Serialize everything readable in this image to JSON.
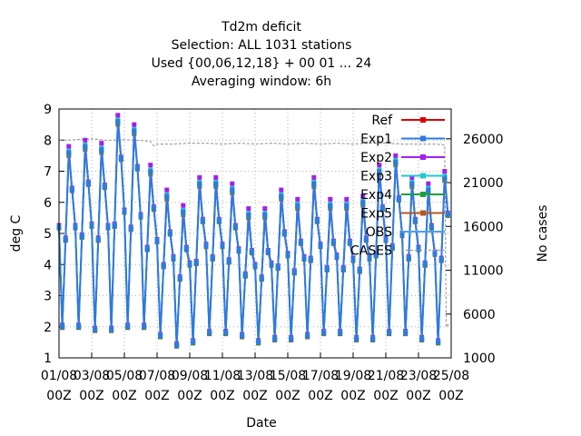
{
  "chart_data": {
    "type": "line",
    "title_lines": [
      "Td2m deficit",
      "Selection: ALL    1031 stations",
      "Used {00,06,12,18} + 00 01 ... 24",
      "Averaging window:  6h"
    ],
    "xlabel": "Date",
    "ylabel": "deg C",
    "y2label": "No cases",
    "ylim": [
      1,
      9
    ],
    "y2lim": [
      1000,
      29400
    ],
    "yticks": [
      "1",
      "2",
      "3",
      "4",
      "5",
      "6",
      "7",
      "8",
      "9"
    ],
    "y2ticks": [
      "1000",
      "6000",
      "11000",
      "16000",
      "21000",
      "26000"
    ],
    "x_ticks": [
      {
        "day": 1,
        "label": "01/08",
        "sub": "00Z"
      },
      {
        "day": 3,
        "label": "03/08",
        "sub": "00Z"
      },
      {
        "day": 5,
        "label": "05/08",
        "sub": "00Z"
      },
      {
        "day": 7,
        "label": "07/08",
        "sub": "00Z"
      },
      {
        "day": 9,
        "label": "09/08",
        "sub": "00Z"
      },
      {
        "day": 11,
        "label": "11/08",
        "sub": "00Z"
      },
      {
        "day": 13,
        "label": "13/08",
        "sub": "00Z"
      },
      {
        "day": 15,
        "label": "15/08",
        "sub": "00Z"
      },
      {
        "day": 17,
        "label": "17/08",
        "sub": "00Z"
      },
      {
        "day": 19,
        "label": "19/08",
        "sub": "00Z"
      },
      {
        "day": 21,
        "label": "21/08",
        "sub": "00Z"
      },
      {
        "day": 23,
        "label": "23/08",
        "sub": "00Z"
      },
      {
        "day": 25,
        "label": "25/08",
        "sub": "00Z"
      }
    ],
    "xlim_days": [
      1,
      25
    ],
    "grid": true,
    "legend_position": "top-right",
    "daily": {
      "days": [
        1,
        2,
        3,
        4,
        5,
        6,
        7,
        8,
        9,
        10,
        11,
        12,
        13,
        14,
        15,
        16,
        17,
        18,
        19,
        20,
        21,
        22,
        23,
        24
      ],
      "max": [
        7.6,
        7.8,
        7.7,
        8.6,
        8.3,
        7.0,
        6.2,
        5.7,
        6.6,
        6.6,
        6.4,
        5.6,
        5.6,
        6.2,
        5.9,
        6.6,
        5.9,
        5.9,
        6.0,
        7.0,
        7.3,
        6.6,
        6.4,
        6.8
      ],
      "min": [
        2.0,
        2.0,
        1.9,
        1.9,
        2.0,
        2.0,
        1.7,
        1.4,
        1.5,
        1.8,
        1.8,
        1.7,
        1.5,
        1.6,
        1.6,
        1.7,
        1.8,
        1.8,
        1.6,
        1.6,
        1.8,
        1.8,
        1.6,
        1.5
      ]
    },
    "series": [
      {
        "name": "Ref",
        "color": "#e00000",
        "marker": "square",
        "offset": 0.0
      },
      {
        "name": "Exp1",
        "color": "#2e7be0",
        "marker": "square",
        "offset": 0.0
      },
      {
        "name": "Exp2",
        "color": "#a020f0",
        "marker": "square",
        "offset": 0.2
      },
      {
        "name": "Exp3",
        "color": "#1fc8d0",
        "marker": "square",
        "offset": 0.05
      },
      {
        "name": "Exp4",
        "color": "#20a040",
        "marker": "square",
        "offset": -0.05
      },
      {
        "name": "Exp5",
        "color": "#b05a20",
        "marker": "square",
        "offset": -0.1
      },
      {
        "name": "OBS",
        "color": "#4aa3e8",
        "marker": "none",
        "offset": 0.0
      },
      {
        "name": "CASES",
        "color": "#a0a0a0",
        "marker": "none",
        "axis": "y2"
      }
    ],
    "cases": {
      "days": [
        1,
        2,
        3,
        4,
        5,
        6,
        6.6,
        6.8,
        7.0,
        8,
        9,
        10,
        11,
        12,
        13,
        14,
        15,
        16,
        17,
        18,
        19,
        20,
        21,
        22,
        23,
        24,
        24.6,
        24.7,
        24.9
      ],
      "values": [
        25800,
        25900,
        26000,
        25800,
        25900,
        25800,
        25700,
        25200,
        25400,
        25400,
        25500,
        25500,
        25400,
        25500,
        25400,
        25500,
        25400,
        25500,
        25400,
        25500,
        25400,
        25500,
        25500,
        25400,
        25400,
        25400,
        25300,
        4500,
        5000
      ]
    }
  }
}
